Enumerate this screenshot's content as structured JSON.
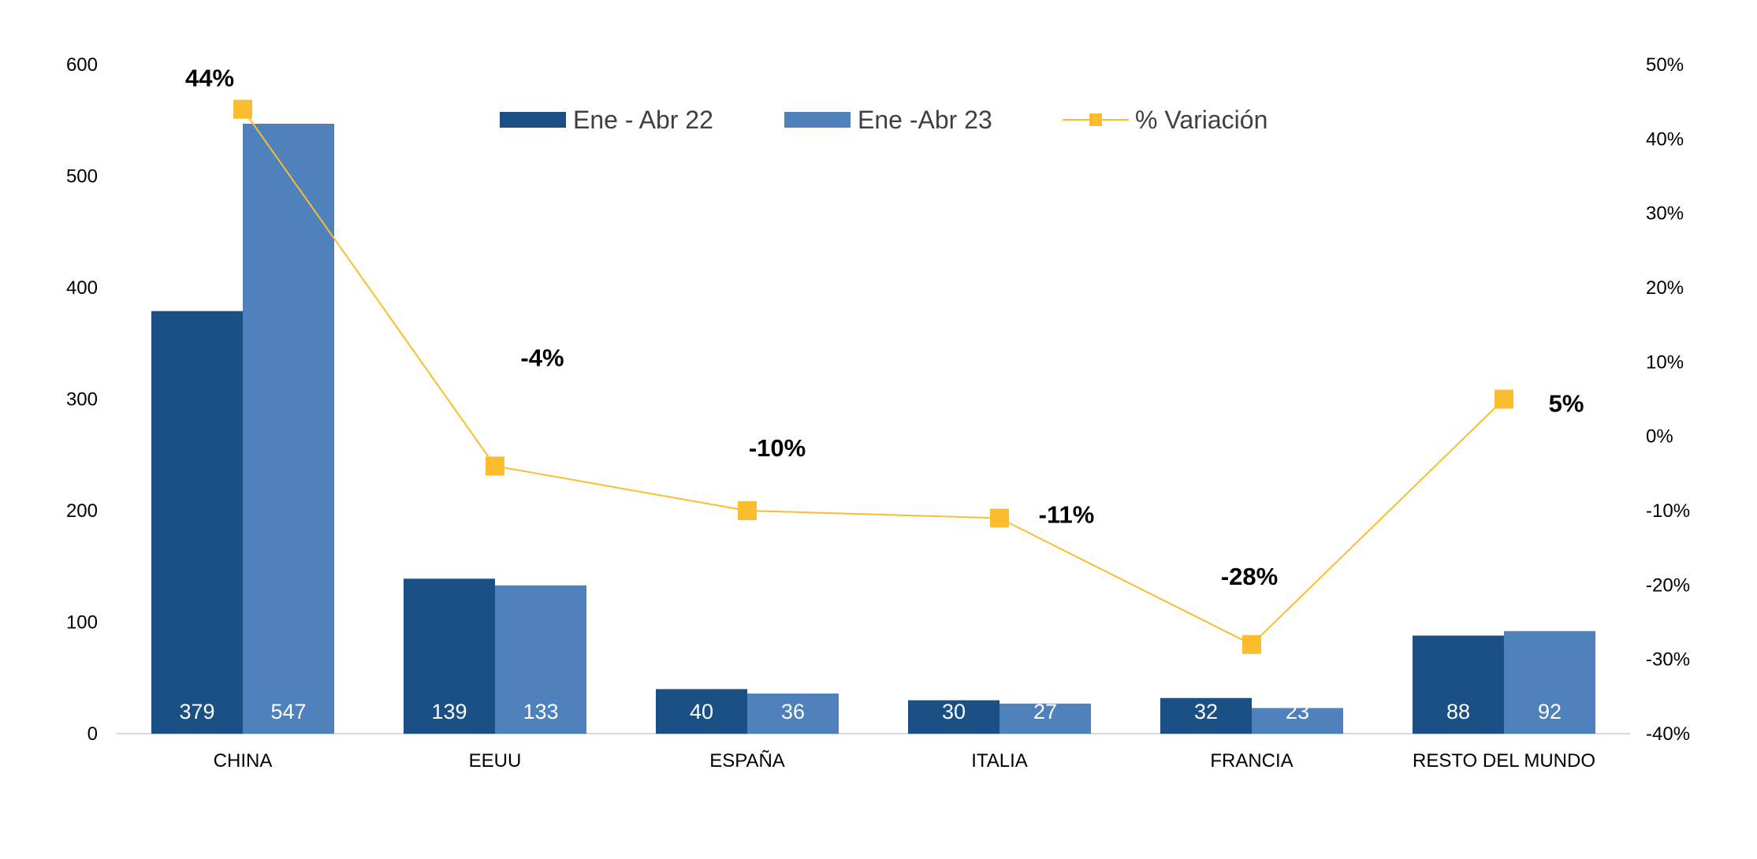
{
  "chart_data": {
    "type": "bar",
    "categories": [
      "CHINA",
      "EEUU",
      "ESPAÑA",
      "ITALIA",
      "FRANCIA",
      "RESTO DEL MUNDO"
    ],
    "series": [
      {
        "name": "Ene - Abr 22",
        "type": "bar",
        "axis": "left",
        "color": "#1a5083",
        "values": [
          379,
          139,
          40,
          30,
          32,
          88
        ]
      },
      {
        "name": "Ene -Abr 23",
        "type": "bar",
        "axis": "left",
        "color": "#4f81bd",
        "values": [
          547,
          133,
          36,
          27,
          23,
          92
        ]
      },
      {
        "name": "% Variación",
        "type": "line",
        "axis": "right",
        "color": "#fbbd2e",
        "values": [
          44,
          -4,
          -10,
          -11,
          -28,
          5
        ]
      }
    ],
    "bar_labels": {
      "Ene - Abr 22": [
        "379",
        "139",
        "40",
        "30",
        "32",
        "88"
      ],
      "Ene -Abr 23": [
        "547",
        "133",
        "36",
        "27",
        "23",
        "92"
      ]
    },
    "line_labels": [
      "44%",
      "-4%",
      "-10%",
      "-11%",
      "-28%",
      "5%"
    ],
    "y_left": {
      "min": 0,
      "max": 600,
      "ticks": [
        "0",
        "100",
        "200",
        "300",
        "400",
        "500",
        "600"
      ]
    },
    "y_right": {
      "min": -40,
      "max": 50,
      "ticks": [
        "-40%",
        "-30%",
        "-20%",
        "-10%",
        "0%",
        "10%",
        "20%",
        "30%",
        "40%",
        "50%"
      ]
    },
    "title": "",
    "xlabel": "",
    "ylabel": "",
    "grid": false,
    "legend_position": "top"
  }
}
